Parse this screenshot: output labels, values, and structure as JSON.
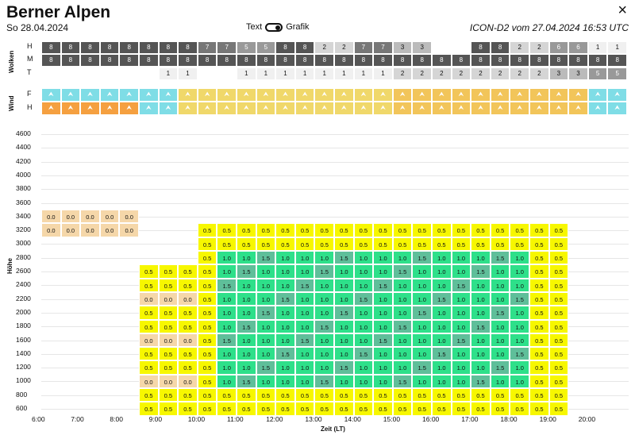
{
  "header": {
    "title": "Berner Alpen",
    "date": "So 28.04.2024",
    "toggle_left": "Text",
    "toggle_right": "Grafik",
    "model": "ICON-D2 vom 27.04.2024 16:53 UTC",
    "close": "×"
  },
  "section_labels": {
    "clouds": "Wolken",
    "wind": "Wind",
    "height": "Höhe",
    "time_axis": "Zeit (LT)"
  },
  "cloud_rows": [
    {
      "label": "H",
      "values": [
        "8",
        "8",
        "8",
        "8",
        "8",
        "8",
        "8",
        "8",
        "7",
        "7",
        "5",
        "5",
        "8",
        "8",
        "2",
        "2",
        "7",
        "7",
        "3",
        "3",
        "",
        "",
        "8",
        "8",
        "2",
        "2",
        "6",
        "6",
        "1",
        "1"
      ]
    },
    {
      "label": "M",
      "values": [
        "8",
        "8",
        "8",
        "8",
        "8",
        "8",
        "8",
        "8",
        "8",
        "8",
        "8",
        "8",
        "8",
        "8",
        "8",
        "8",
        "8",
        "8",
        "8",
        "8",
        "8",
        "8",
        "8",
        "8",
        "8",
        "8",
        "8",
        "8",
        "8",
        "8"
      ]
    },
    {
      "label": "T",
      "values": [
        "",
        "",
        "",
        "",
        "",
        "",
        "1",
        "1",
        "",
        "",
        "1",
        "1",
        "1",
        "1",
        "1",
        "1",
        "1",
        "1",
        "2",
        "2",
        "2",
        "2",
        "2",
        "2",
        "2",
        "2",
        "3",
        "3",
        "5",
        "5"
      ]
    }
  ],
  "wind_rows": [
    {
      "label": "F"
    },
    {
      "label": "H"
    }
  ],
  "y_ticks": [
    "4600",
    "4400",
    "4200",
    "4000",
    "3800",
    "3600",
    "3400",
    "3200",
    "3000",
    "2800",
    "2600",
    "2400",
    "2200",
    "2000",
    "1800",
    "1600",
    "1400",
    "1200",
    "1000",
    "800",
    "600"
  ],
  "x_ticks": [
    "6:00",
    "7:00",
    "8:00",
    "9:00",
    "10:00",
    "11:00",
    "12:00",
    "13:00",
    "14:00",
    "15:00",
    "16:00",
    "17:00",
    "18:00",
    "19:00",
    "20:00"
  ],
  "colors": {
    "tan": "#f5d7a9",
    "yellow": "#f7f700",
    "green": "#2ee08a",
    "teal": "#5fbf9a",
    "dark": "#555555",
    "gray": "#888888",
    "light": "#d0d0d0",
    "cyan": "#7fdde6",
    "windyellow": "#f0d86a",
    "orange": "#f5a040"
  }
}
